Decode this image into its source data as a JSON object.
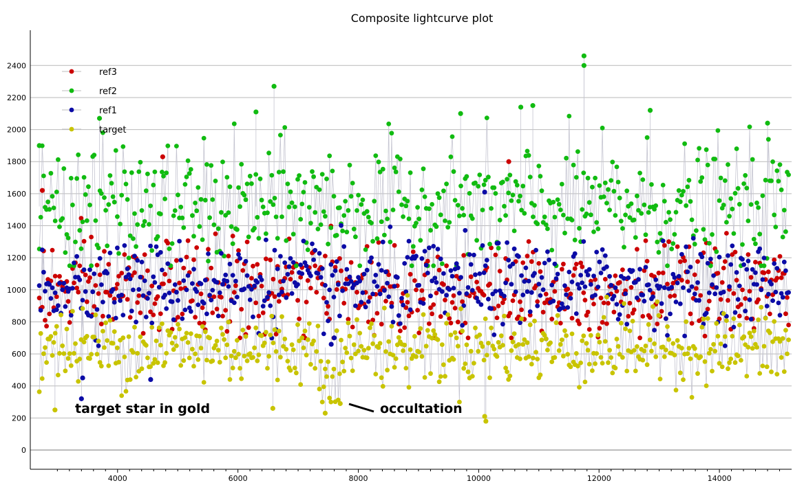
{
  "chart_data": {
    "type": "scatter",
    "title": "Composite lightcurve plot",
    "xlabel": "",
    "ylabel": "",
    "xlim": [
      2550,
      15200
    ],
    "ylim": [
      -120,
      2620
    ],
    "x_ticks": [
      4000,
      6000,
      8000,
      10000,
      12000,
      14000
    ],
    "y_ticks": [
      0,
      200,
      400,
      600,
      800,
      1000,
      1200,
      1400,
      1600,
      1800,
      2000,
      2200,
      2400
    ],
    "grid": "horizontal",
    "legend_position": "top-left",
    "x_range": [
      2700,
      15150
    ],
    "series": [
      {
        "name": "ref3",
        "color": "#cc0000",
        "baseline": 1000,
        "spread": 150,
        "min": 700,
        "max": 1840,
        "outliers": [
          [
            2750,
            1620
          ],
          [
            4750,
            1830
          ],
          [
            10500,
            1800
          ]
        ]
      },
      {
        "name": "ref2",
        "color": "#11bb11",
        "baseline": 1520,
        "spread": 190,
        "min": 1150,
        "max": 2470,
        "outliers": [
          [
            2700,
            1900
          ],
          [
            6600,
            2270
          ],
          [
            6300,
            2110
          ],
          [
            9700,
            2100
          ],
          [
            10700,
            2140
          ],
          [
            10900,
            2150
          ],
          [
            11750,
            2460
          ],
          [
            11750,
            2400
          ],
          [
            12850,
            2120
          ],
          [
            14800,
            2040
          ],
          [
            3700,
            2070
          ]
        ]
      },
      {
        "name": "ref1",
        "color": "#0b0ba6",
        "baseline": 1030,
        "spread": 130,
        "min": 650,
        "max": 1620,
        "outliers": [
          [
            3400,
            320
          ],
          [
            3420,
            450
          ],
          [
            4550,
            440
          ],
          [
            7550,
            660
          ],
          [
            7600,
            700
          ],
          [
            10100,
            1610
          ]
        ]
      },
      {
        "name": "target",
        "color": "#c8c400",
        "baseline": 640,
        "spread": 115,
        "min": 300,
        "max": 980,
        "outliers": [
          [
            2960,
            250
          ],
          [
            6580,
            260
          ],
          [
            7450,
            230
          ],
          [
            7700,
            290
          ],
          [
            10100,
            210
          ],
          [
            10120,
            180
          ]
        ]
      }
    ],
    "annotations": [
      {
        "text": "target star in gold"
      },
      {
        "text": "occultation"
      }
    ]
  }
}
